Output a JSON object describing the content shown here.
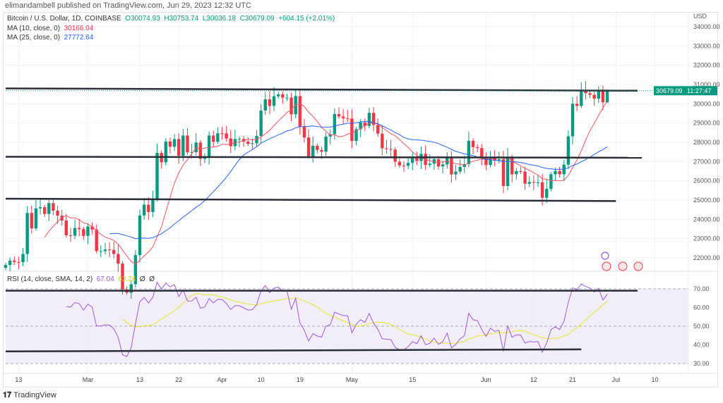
{
  "header": {
    "published": "elimandambell published on TradingView.com, Jun 29, 2023 12:32 UTC"
  },
  "legend": {
    "symbol": "Bitcoin / U.S. Dollar, 1D, COINBASE",
    "open": "O30074.93",
    "high": "H30753.74",
    "low": "L30036.18",
    "close": "C30679.09",
    "change": "+604.15 (+2.01%)",
    "ma10_label": "MA (10, close, 0)",
    "ma10_value": "30166.04",
    "ma25_label": "MA (25, close, 0)",
    "ma25_value": "27772.64",
    "rsi_label": "RSI (14, close, SMA, 14, 2)",
    "rsi_value": "67.04",
    "rsi_sma_value": "63.24",
    "rsi_extra1": "Ø",
    "rsi_extra2": "Ø"
  },
  "price_tag": {
    "price": "30679.09",
    "countdown": "11:27:47"
  },
  "footer": {
    "brand": "TradingView"
  },
  "colors": {
    "up": "#089981",
    "down": "#f23645",
    "ma10": "#f7525f",
    "ma25": "#2962ff",
    "rsi": "#a256e0",
    "rsi_sma": "#e6e62a",
    "rsi_band": "#ede7f6"
  },
  "chart_data": [
    {
      "type": "candlestick",
      "currency": "USD",
      "first_date": "2023-02-10",
      "ylim": [
        21300,
        34500
      ],
      "yticks": [
        "34000.00",
        "33000.00",
        "32000.00",
        "31000.00",
        "30000.00",
        "29000.00",
        "28000.00",
        "27000.00",
        "26000.00",
        "25000.00",
        "24000.00",
        "23000.00",
        "22000.00"
      ],
      "xticks": [
        {
          "label": "13",
          "date": "2023-02-13"
        },
        {
          "label": "Mar",
          "date": "2023-03-01"
        },
        {
          "label": "13",
          "date": "2023-03-13"
        },
        {
          "label": "22",
          "date": "2023-03-22"
        },
        {
          "label": "Apr",
          "date": "2023-04-01"
        },
        {
          "label": "10",
          "date": "2023-04-10"
        },
        {
          "label": "19",
          "date": "2023-04-19"
        },
        {
          "label": "May",
          "date": "2023-05-01"
        },
        {
          "label": "15",
          "date": "2023-05-15"
        },
        {
          "label": "Jun",
          "date": "2023-06-01"
        },
        {
          "label": "12",
          "date": "2023-06-12"
        },
        {
          "label": "21",
          "date": "2023-06-21"
        },
        {
          "label": "Jul",
          "date": "2023-07-01"
        },
        {
          "label": "10",
          "date": "2023-07-10"
        }
      ],
      "close": [
        21630,
        21860,
        21790,
        21780,
        22200,
        24330,
        23530,
        24570,
        24630,
        24280,
        24840,
        24450,
        24190,
        23940,
        23170,
        23150,
        23550,
        23490,
        23140,
        23630,
        23470,
        22350,
        22350,
        22430,
        22410,
        22200,
        21700,
        20360,
        20190,
        20630,
        22140,
        24200,
        24760,
        24380,
        25050,
        27450,
        26960,
        28040,
        27770,
        28170,
        27300,
        28350,
        27480,
        27490,
        27990,
        27140,
        27270,
        28350,
        28030,
        28470,
        28460,
        28200,
        27800,
        28170,
        28170,
        28040,
        27920,
        27950,
        28330,
        29650,
        30230,
        29890,
        30390,
        30490,
        30320,
        30320,
        29450,
        30400,
        28820,
        28250,
        27270,
        27820,
        27600,
        27510,
        28300,
        28420,
        29470,
        29340,
        29250,
        29230,
        28070,
        28680,
        29030,
        28850,
        29530,
        28900,
        28450,
        27690,
        27650,
        27620,
        26990,
        26800,
        26780,
        26930,
        27170,
        27030,
        27400,
        26830,
        26890,
        27120,
        26750,
        26850,
        27230,
        26330,
        26480,
        26720,
        26870,
        28080,
        27750,
        27700,
        27220,
        26820,
        27250,
        27070,
        27120,
        25730,
        27230,
        26340,
        26500,
        26480,
        25850,
        25940,
        25900,
        25920,
        25120,
        25580,
        26340,
        26510,
        26340,
        26840,
        28310,
        30000,
        29890,
        30690,
        30550,
        30470,
        30270,
        30690,
        30080,
        30679.09
      ],
      "last_open": 30074.93,
      "last_high": 30753.74,
      "last_low": 30036.18,
      "trendlines": [
        {
          "from": {
            "date": "2023-02-10",
            "price": 30800
          },
          "to": {
            "date": "2023-07-06",
            "price": 30680
          }
        },
        {
          "from": {
            "date": "2023-02-10",
            "price": 27250
          },
          "to": {
            "date": "2023-07-07",
            "price": 27200
          }
        },
        {
          "from": {
            "date": "2023-02-10",
            "price": 25070
          },
          "to": {
            "date": "2023-07-01",
            "price": 24950
          }
        }
      ]
    },
    {
      "type": "line",
      "title": "RSI (14, close, SMA, 14, 2)",
      "ylim": [
        25,
        75
      ],
      "yticks": [
        "70.00",
        "60.00",
        "50.00",
        "40.00",
        "30.00"
      ],
      "bands": [
        30,
        50,
        70
      ],
      "trendlines": [
        {
          "from": {
            "date": "2023-02-10",
            "value": 69
          },
          "to": {
            "date": "2023-07-06",
            "value": 69
          }
        },
        {
          "from": {
            "date": "2023-02-10",
            "value": 36.5
          },
          "to": {
            "date": "2023-06-23",
            "value": 37.6
          }
        }
      ]
    }
  ]
}
